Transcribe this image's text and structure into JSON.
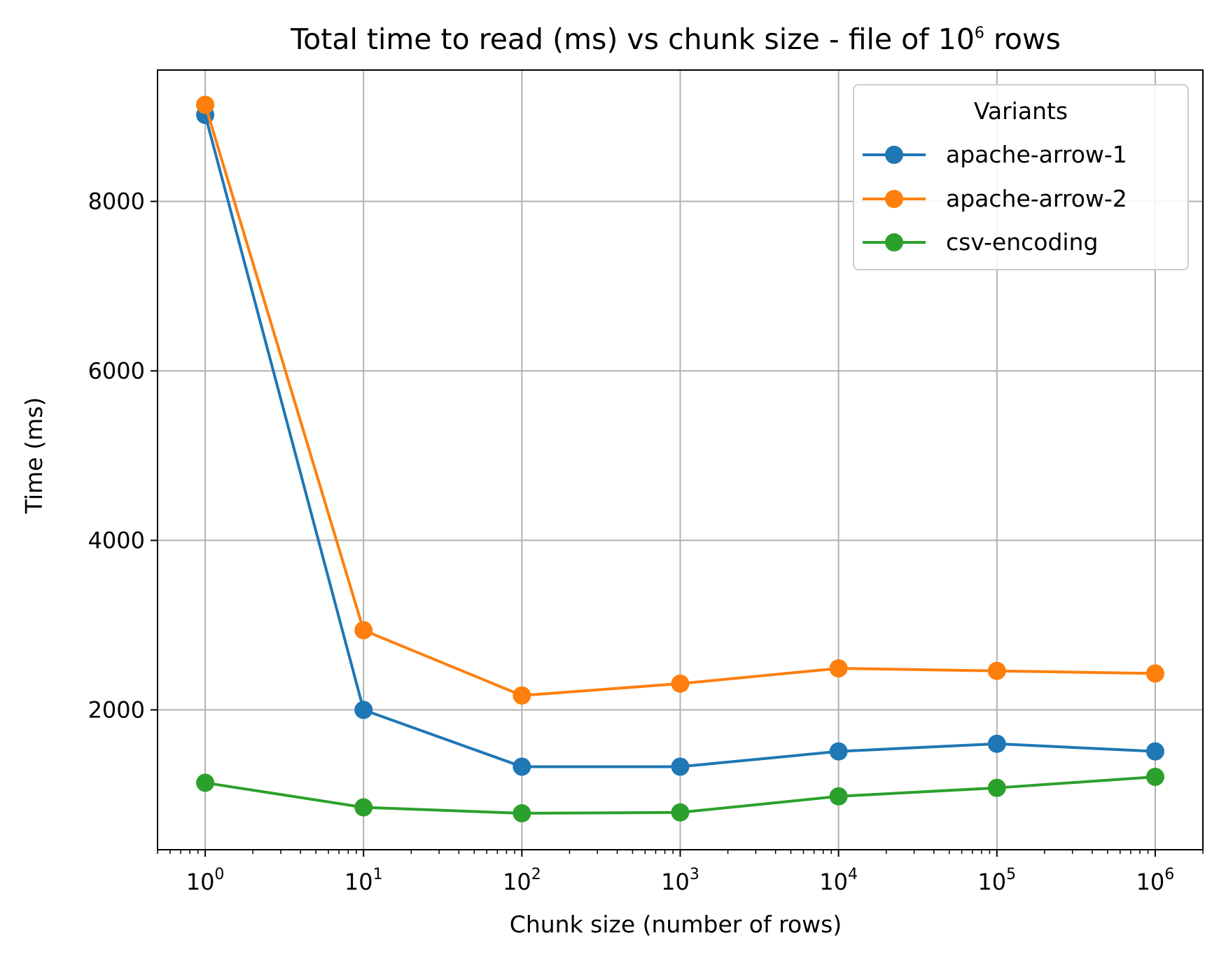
{
  "chart_data": {
    "type": "line",
    "title": "Total time to read (ms) vs chunk size - file of 10",
    "title_sup": "6",
    "title_tail": " rows",
    "xlabel": "Chunk size (number of rows)",
    "ylabel": "Time (ms)",
    "x_scale": "log",
    "xlim": [
      0.5,
      2000000
    ],
    "ylim": [
      350,
      9550
    ],
    "x": [
      1,
      10,
      100,
      1000,
      10000,
      100000,
      1000000
    ],
    "x_ticks": [
      {
        "value": 1,
        "base": "10",
        "exp": "0"
      },
      {
        "value": 10,
        "base": "10",
        "exp": "1"
      },
      {
        "value": 100,
        "base": "10",
        "exp": "2"
      },
      {
        "value": 1000,
        "base": "10",
        "exp": "3"
      },
      {
        "value": 10000,
        "base": "10",
        "exp": "4"
      },
      {
        "value": 100000,
        "base": "10",
        "exp": "5"
      },
      {
        "value": 1000000,
        "base": "10",
        "exp": "6"
      }
    ],
    "y_ticks": [
      {
        "value": 2000,
        "label": "2000"
      },
      {
        "value": 4000,
        "label": "4000"
      },
      {
        "value": 6000,
        "label": "6000"
      },
      {
        "value": 8000,
        "label": "8000"
      }
    ],
    "grid": true,
    "legend": {
      "title": "Variants",
      "position": "top-right"
    },
    "series": [
      {
        "name": "apache-arrow-1",
        "color": "#1f77b4",
        "values": [
          9020,
          2000,
          1330,
          1330,
          1510,
          1600,
          1510
        ]
      },
      {
        "name": "apache-arrow-2",
        "color": "#ff7f0e",
        "values": [
          9140,
          2940,
          2170,
          2310,
          2490,
          2460,
          2430
        ]
      },
      {
        "name": "csv-encoding",
        "color": "#2ca02c",
        "values": [
          1140,
          850,
          780,
          790,
          980,
          1080,
          1210
        ]
      }
    ]
  }
}
